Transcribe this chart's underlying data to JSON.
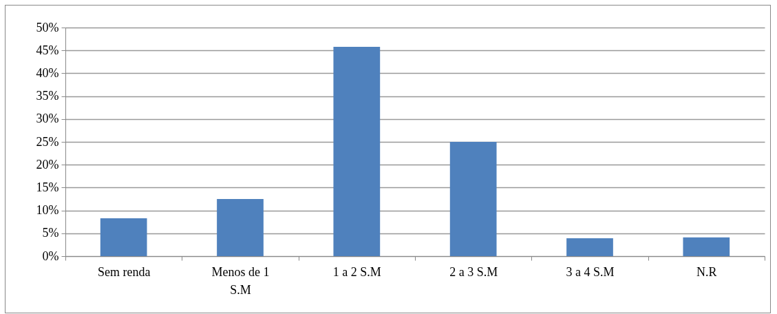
{
  "chart_data": {
    "type": "bar",
    "categories": [
      "Sem renda",
      "Menos de 1 S.M",
      "1 a 2 S.M",
      "2 a 3 S.M",
      "3 a 4 S.M",
      "N.R"
    ],
    "values": [
      8.3,
      12.5,
      45.8,
      25,
      3.9,
      4.1
    ],
    "color": "#4f81bd",
    "ylim": [
      0,
      50
    ],
    "yticks": [
      {
        "value": 0,
        "label": "0%"
      },
      {
        "value": 5,
        "label": "5%"
      },
      {
        "value": 10,
        "label": "10%"
      },
      {
        "value": 15,
        "label": "15%"
      },
      {
        "value": 20,
        "label": "20%"
      },
      {
        "value": 25,
        "label": "25%"
      },
      {
        "value": 30,
        "label": "30%"
      },
      {
        "value": 35,
        "label": "35%"
      },
      {
        "value": 40,
        "label": "40%"
      },
      {
        "value": 45,
        "label": "45%"
      },
      {
        "value": 50,
        "label": "50%"
      }
    ],
    "grid": "y"
  }
}
